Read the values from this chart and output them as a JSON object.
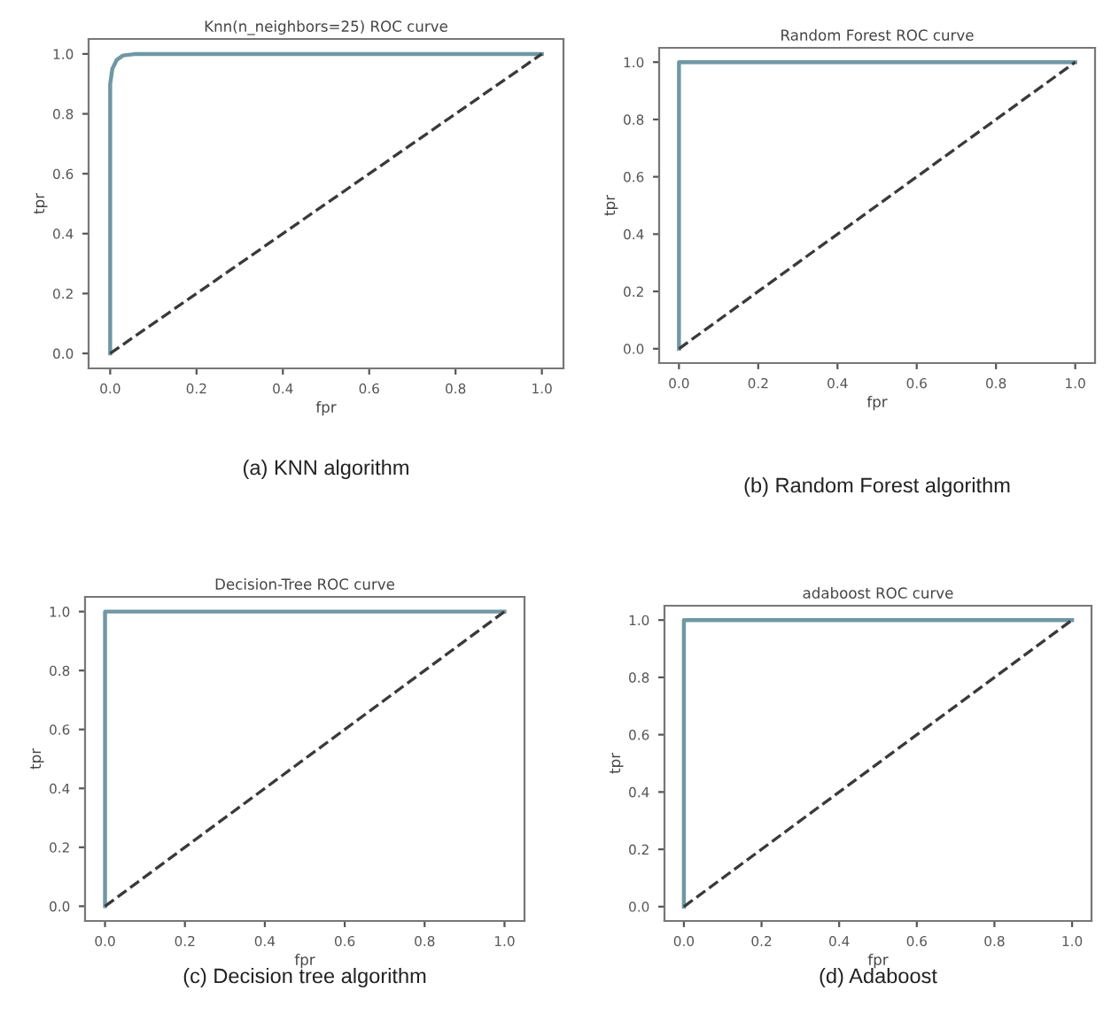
{
  "chart_data": [
    {
      "type": "line",
      "title": "Knn(n_neighbors=25) ROC curve",
      "xlabel": "fpr",
      "ylabel": "tpr",
      "annotations": [
        "(a) KNN algorithm"
      ],
      "xlim": [
        -0.05,
        1.05
      ],
      "ylim": [
        -0.05,
        1.05
      ],
      "xticks": [
        {
          "value": 0,
          "label": "0.0"
        },
        {
          "value": 0.2,
          "label": "0.2"
        },
        {
          "value": 0.4,
          "label": "0.4"
        },
        {
          "value": 0.6,
          "label": "0.6"
        },
        {
          "value": 0.8,
          "label": "0.8"
        },
        {
          "value": 1,
          "label": "1.0"
        }
      ],
      "yticks": [
        {
          "value": 0,
          "label": "0.0"
        },
        {
          "value": 0.2,
          "label": "0.2"
        },
        {
          "value": 0.4,
          "label": "0.4"
        },
        {
          "value": 0.6,
          "label": "0.6"
        },
        {
          "value": 0.8,
          "label": "0.8"
        },
        {
          "value": 1,
          "label": "1.0"
        }
      ],
      "series": [
        {
          "color": "#6f98a4",
          "line_style": "solid",
          "x": [
            0,
            0,
            0.005,
            0.015,
            0.03,
            0.06,
            1
          ],
          "values": [
            0,
            0.9,
            0.95,
            0.98,
            0.995,
            1,
            1
          ]
        },
        {
          "color": "#3a3a3a",
          "line_style": "dashed",
          "x": [
            0,
            1
          ],
          "values": [
            0,
            1
          ]
        }
      ]
    },
    {
      "type": "line",
      "title": "Random Forest ROC curve",
      "xlabel": "fpr",
      "ylabel": "tpr",
      "annotations": [
        "(b) Random Forest algorithm"
      ],
      "xlim": [
        -0.05,
        1.05
      ],
      "ylim": [
        -0.05,
        1.05
      ],
      "xticks": [
        {
          "value": 0,
          "label": "0.0"
        },
        {
          "value": 0.2,
          "label": "0.2"
        },
        {
          "value": 0.4,
          "label": "0.4"
        },
        {
          "value": 0.6,
          "label": "0.6"
        },
        {
          "value": 0.8,
          "label": "0.8"
        },
        {
          "value": 1,
          "label": "1.0"
        }
      ],
      "yticks": [
        {
          "value": 0,
          "label": "0.0"
        },
        {
          "value": 0.2,
          "label": "0.2"
        },
        {
          "value": 0.4,
          "label": "0.4"
        },
        {
          "value": 0.6,
          "label": "0.6"
        },
        {
          "value": 0.8,
          "label": "0.8"
        },
        {
          "value": 1,
          "label": "1.0"
        }
      ],
      "series": [
        {
          "color": "#6f98a4",
          "line_style": "solid",
          "x": [
            0,
            0,
            1
          ],
          "values": [
            0,
            1,
            1
          ]
        },
        {
          "color": "#3a3a3a",
          "line_style": "dashed",
          "x": [
            0,
            1
          ],
          "values": [
            0,
            1
          ]
        }
      ]
    },
    {
      "type": "line",
      "title": "Decision-Tree ROC curve",
      "xlabel": "fpr",
      "ylabel": "tpr",
      "annotations": [
        "(c) Decision tree algorithm"
      ],
      "xlim": [
        -0.05,
        1.05
      ],
      "ylim": [
        -0.05,
        1.05
      ],
      "xticks": [
        {
          "value": 0,
          "label": "0.0"
        },
        {
          "value": 0.2,
          "label": "0.2"
        },
        {
          "value": 0.4,
          "label": "0.4"
        },
        {
          "value": 0.6,
          "label": "0.6"
        },
        {
          "value": 0.8,
          "label": "0.8"
        },
        {
          "value": 1,
          "label": "1.0"
        }
      ],
      "yticks": [
        {
          "value": 0,
          "label": "0.0"
        },
        {
          "value": 0.2,
          "label": "0.2"
        },
        {
          "value": 0.4,
          "label": "0.4"
        },
        {
          "value": 0.6,
          "label": "0.6"
        },
        {
          "value": 0.8,
          "label": "0.8"
        },
        {
          "value": 1,
          "label": "1.0"
        }
      ],
      "series": [
        {
          "color": "#6f98a4",
          "line_style": "solid",
          "x": [
            0,
            0,
            1
          ],
          "values": [
            0,
            1,
            1
          ]
        },
        {
          "color": "#3a3a3a",
          "line_style": "dashed",
          "x": [
            0,
            1
          ],
          "values": [
            0,
            1
          ]
        }
      ]
    },
    {
      "type": "line",
      "title": "adaboost ROC curve",
      "xlabel": "fpr",
      "ylabel": "tpr",
      "annotations": [
        "(d) Adaboost"
      ],
      "xlim": [
        -0.05,
        1.05
      ],
      "ylim": [
        -0.05,
        1.05
      ],
      "xticks": [
        {
          "value": 0,
          "label": "0.0"
        },
        {
          "value": 0.2,
          "label": "0.2"
        },
        {
          "value": 0.4,
          "label": "0.4"
        },
        {
          "value": 0.6,
          "label": "0.6"
        },
        {
          "value": 0.8,
          "label": "0.8"
        },
        {
          "value": 1,
          "label": "1.0"
        }
      ],
      "yticks": [
        {
          "value": 0,
          "label": "0.0"
        },
        {
          "value": 0.2,
          "label": "0.2"
        },
        {
          "value": 0.4,
          "label": "0.4"
        },
        {
          "value": 0.6,
          "label": "0.6"
        },
        {
          "value": 0.8,
          "label": "0.8"
        },
        {
          "value": 1,
          "label": "1.0"
        }
      ],
      "series": [
        {
          "color": "#6f98a4",
          "line_style": "solid",
          "x": [
            0,
            0,
            1
          ],
          "values": [
            0,
            1,
            1
          ]
        },
        {
          "color": "#3a3a3a",
          "line_style": "dashed",
          "x": [
            0,
            1
          ],
          "values": [
            0,
            1
          ]
        }
      ]
    }
  ]
}
